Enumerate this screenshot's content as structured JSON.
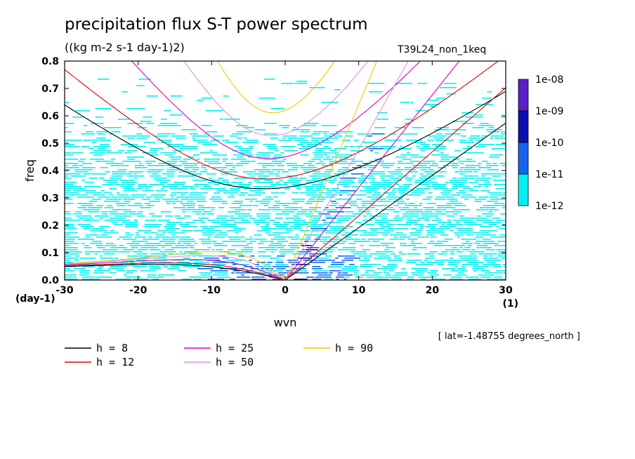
{
  "chart_data": {
    "type": "heatmap",
    "title": "precipitation flux S-T power spectrum",
    "subtitle": "((kg m-2 s-1 day-1)2)",
    "experiment": "T39L24_non_1keq",
    "xlabel": "wvn",
    "xunit": "(1)",
    "ylabel": "freq",
    "yunit": "(day-1)",
    "xlim": [
      -30,
      30
    ],
    "ylim": [
      0,
      0.8
    ],
    "xticks": [
      "-30",
      "-20",
      "-10",
      "0",
      "10",
      "20",
      "30"
    ],
    "yticks": [
      "0.0",
      "0.1",
      "0.2",
      "0.3",
      "0.4",
      "0.5",
      "0.6",
      "0.7",
      "0.8"
    ],
    "colorbar": {
      "labels": [
        "1e-08",
        "1e-09",
        "1e-10",
        "1e-11",
        "1e-12"
      ],
      "colors": [
        "#5a1fc8",
        "#0a10b0",
        "#1464f0",
        "#00f0f0"
      ]
    },
    "field_colors": {
      "level1": "#00f0f0",
      "level2": "#1464f0",
      "level3": "#0a10b0"
    },
    "dispersion_curves": [
      {
        "label": "h =  8",
        "h": 8,
        "color": "#000000"
      },
      {
        "label": "h = 12",
        "h": 12,
        "color": "#e00000"
      },
      {
        "label": "h = 25",
        "h": 25,
        "color": "#e000c0"
      },
      {
        "label": "h = 50",
        "h": 50,
        "color": "#e090e0"
      },
      {
        "label": "h = 90",
        "h": 90,
        "color": "#f0c800"
      }
    ],
    "annotation": "[ lat=-1.48755 degrees_north ]"
  }
}
